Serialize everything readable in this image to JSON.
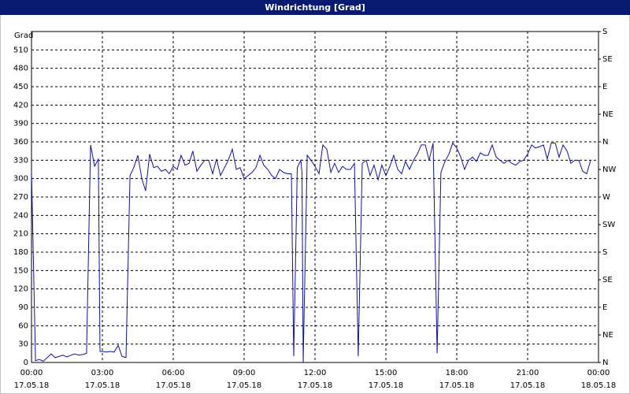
{
  "chart_data": {
    "type": "line",
    "title": "Windrichtung [Grad]",
    "y_label": "Grad",
    "xlim": [
      0,
      24
    ],
    "xticks": [
      {
        "value": 0,
        "label": "00:00",
        "date": "17.05.18"
      },
      {
        "value": 3,
        "label": "03:00",
        "date": "17.05.18"
      },
      {
        "value": 6,
        "label": "06:00",
        "date": "17.05.18"
      },
      {
        "value": 9,
        "label": "09:00",
        "date": "17.05.18"
      },
      {
        "value": 12,
        "label": "12:00",
        "date": "17.05.18"
      },
      {
        "value": 15,
        "label": "15:00",
        "date": "17.05.18"
      },
      {
        "value": 18,
        "label": "18:00",
        "date": "17.05.18"
      },
      {
        "value": 21,
        "label": "21:00",
        "date": "17.05.18"
      },
      {
        "value": 24,
        "label": "00:00",
        "date": "18.05.18"
      }
    ],
    "ylim": [
      0,
      540
    ],
    "yticks": [
      0,
      30,
      60,
      90,
      120,
      150,
      180,
      210,
      240,
      270,
      300,
      330,
      360,
      390,
      420,
      450,
      480,
      510
    ],
    "y2lim": [
      0,
      540
    ],
    "y2ticks": [
      {
        "value": 0,
        "label": "N"
      },
      {
        "value": 45,
        "label": "NE"
      },
      {
        "value": 90,
        "label": "E"
      },
      {
        "value": 135,
        "label": "SE"
      },
      {
        "value": 180,
        "label": "S"
      },
      {
        "value": 225,
        "label": "SW"
      },
      {
        "value": 270,
        "label": "W"
      },
      {
        "value": 315,
        "label": "NW"
      },
      {
        "value": 360,
        "label": "N"
      },
      {
        "value": 405,
        "label": "NE"
      },
      {
        "value": 450,
        "label": "E"
      },
      {
        "value": 495,
        "label": "SE"
      },
      {
        "value": 540,
        "label": "S"
      }
    ],
    "grid": true,
    "series": [
      {
        "color": "#1010a0",
        "x": [
          0,
          0.17,
          0.33,
          0.5,
          0.67,
          0.83,
          1,
          1.17,
          1.33,
          1.5,
          1.67,
          1.83,
          2,
          2.17,
          2.33,
          2.5,
          2.67,
          2.83,
          2.9,
          3,
          3.17,
          3.33,
          3.5,
          3.67,
          3.83,
          4,
          4.17,
          4.33,
          4.5,
          4.67,
          4.83,
          5,
          5.17,
          5.33,
          5.5,
          5.67,
          5.83,
          6,
          6.17,
          6.33,
          6.5,
          6.67,
          6.83,
          7,
          7.17,
          7.33,
          7.5,
          7.67,
          7.83,
          8,
          8.17,
          8.33,
          8.5,
          8.67,
          8.83,
          9,
          9.17,
          9.33,
          9.5,
          9.67,
          9.83,
          10,
          10.17,
          10.33,
          10.5,
          10.67,
          10.83,
          11,
          11.1,
          11.25,
          11.4,
          11.45,
          11.5,
          11.67,
          11.83,
          12,
          12.17,
          12.33,
          12.5,
          12.67,
          12.83,
          13,
          13.17,
          13.33,
          13.5,
          13.67,
          13.83,
          14,
          14.17,
          14.33,
          14.5,
          14.67,
          14.83,
          15,
          15.17,
          15.33,
          15.5,
          15.67,
          15.83,
          16,
          16.17,
          16.33,
          16.5,
          16.67,
          16.83,
          17,
          17.17,
          17.33,
          17.5,
          17.67,
          17.83,
          18,
          18.17,
          18.33,
          18.5,
          18.67,
          18.83,
          19,
          19.17,
          19.33,
          19.5,
          19.67,
          19.83,
          20,
          20.17,
          20.33,
          20.5,
          20.67,
          20.83,
          21,
          21.17,
          21.33,
          21.5,
          21.67,
          21.83,
          22,
          22.17,
          22.33,
          22.5,
          22.67,
          22.83,
          23,
          23.17,
          23.33,
          23.5,
          23.67
        ],
        "values": [
          313,
          3,
          5,
          2,
          8,
          14,
          8,
          10,
          12,
          9,
          12,
          14,
          12,
          13,
          15,
          355,
          320,
          332,
          18,
          18,
          17,
          18,
          17,
          28,
          10,
          8,
          305,
          318,
          338,
          300,
          280,
          340,
          318,
          320,
          312,
          315,
          308,
          320,
          315,
          338,
          322,
          325,
          345,
          312,
          322,
          330,
          330,
          308,
          332,
          305,
          318,
          330,
          348,
          315,
          318,
          300,
          305,
          310,
          318,
          338,
          322,
          315,
          305,
          300,
          315,
          310,
          308,
          308,
          10,
          318,
          330,
          310,
          0,
          338,
          330,
          320,
          308,
          355,
          348,
          310,
          325,
          310,
          320,
          315,
          315,
          325,
          10,
          325,
          330,
          305,
          322,
          298,
          322,
          305,
          320,
          338,
          315,
          308,
          328,
          315,
          330,
          340,
          355,
          355,
          330,
          358,
          15,
          310,
          328,
          340,
          358,
          350,
          335,
          315,
          330,
          335,
          328,
          342,
          338,
          338,
          355,
          335,
          330,
          325,
          330,
          325,
          322,
          328,
          330,
          340,
          355,
          350,
          352,
          355,
          332,
          358,
          358,
          335,
          355,
          345,
          325,
          330,
          330,
          312,
          308,
          330
        ]
      }
    ]
  }
}
